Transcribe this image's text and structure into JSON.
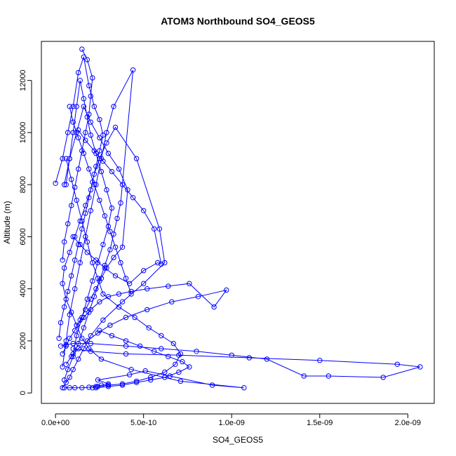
{
  "chart_data": {
    "type": "line",
    "title": "ATOM3 Northbound SO4_GEOS5",
    "xlabel": "SO4_GEOS5",
    "ylabel": "Altitude (m)",
    "xlim": [
      -8e-11,
      2.15e-09
    ],
    "ylim": [
      -400,
      13500
    ],
    "x_ticks": [
      0,
      5e-10,
      1e-09,
      1.5e-09,
      2e-09
    ],
    "x_tick_labels": [
      "0.0e+00",
      "5.0e-10",
      "1.0e-09",
      "1.5e-09",
      "2.0e-09"
    ],
    "y_ticks": [
      0,
      2000,
      4000,
      6000,
      8000,
      10000,
      12000
    ],
    "y_tick_labels": [
      "0",
      "2000",
      "4000",
      "6000",
      "8000",
      "10000",
      "12000"
    ],
    "marker": "open-circle",
    "series_color": "#0000ff",
    "series": [
      {
        "x": [
          2.1e-10,
          2.3e-10,
          2.6e-10,
          3e-10,
          2.4e-10,
          4.2e-10,
          5.1e-10,
          6.5e-10,
          8.9e-10,
          1.07e-09,
          7.1e-10,
          4.3e-10,
          2.6e-10,
          1.9e-10,
          1.5e-10,
          1.2e-10,
          9e-11,
          6e-11,
          4e-11,
          5e-11,
          8e-11,
          1.1e-10,
          1.4e-10,
          1.7e-10,
          2e-10,
          2.2e-10,
          2.5e-10,
          2.9e-10,
          3.4e-10,
          4.6e-10,
          5.9e-10,
          6.2e-10,
          5e-10,
          3.8e-10,
          2.7e-10,
          2e-10,
          1.6e-10,
          1.3e-10,
          1e-10,
          8e-11,
          6e-11,
          4e-11
        ],
        "y": [
          200,
          250,
          300,
          350,
          500,
          700,
          850,
          650,
          300,
          200,
          450,
          900,
          1300,
          1700,
          2100,
          2600,
          3100,
          3600,
          4200,
          4800,
          5400,
          6000,
          6600,
          7200,
          7800,
          8400,
          9000,
          9600,
          10200,
          9000,
          6300,
          5000,
          4200,
          3500,
          2800,
          2200,
          1700,
          1300,
          900,
          600,
          400,
          200
        ]
      },
      {
        "x": [
          5e-11,
          7e-11,
          1e-10,
          1.3e-10,
          1.6e-10,
          1.9e-10,
          2.2e-10,
          2.5e-10,
          2.8e-10,
          3.1e-10,
          3.3e-10,
          3.5e-10,
          3.7e-10,
          4.4e-10,
          3.3e-10,
          2.9e-10,
          2.6e-10,
          2.3e-10,
          2e-10,
          1.7e-10,
          1.4e-10,
          1.1e-10,
          8e-11,
          6e-11,
          4e-11
        ],
        "y": [
          500,
          900,
          1400,
          1900,
          2500,
          3100,
          3700,
          4300,
          4900,
          5500,
          6100,
          6700,
          7300,
          12400,
          11000,
          10000,
          9000,
          8000,
          7000,
          6000,
          5000,
          4000,
          3000,
          2000,
          1000
        ]
      },
      {
        "x": [
          1e-10,
          1.2e-10,
          1.5e-10,
          1.8e-10,
          2.1e-10,
          2.4e-10,
          2.7e-10,
          3e-10,
          3.2e-10,
          2.9e-10,
          2.6e-10,
          2.3e-10,
          2e-10,
          1.8e-10,
          1.6e-10,
          1.4e-10,
          1.2e-10,
          1e-10,
          8e-11,
          6e-11
        ],
        "y": [
          1500,
          2200,
          2900,
          3600,
          4300,
          5000,
          5700,
          6400,
          7100,
          7800,
          8500,
          9200,
          9900,
          10600,
          11300,
          12000,
          11000,
          10000,
          9000,
          8000
        ]
      },
      {
        "x": [
          6e-11,
          9e-11,
          1.2e-10,
          1.5e-10,
          1.8e-10,
          2.1e-10,
          2.4e-10,
          2.7e-10,
          3.6e-10,
          4.5e-10,
          5.3e-10,
          6e-10,
          6.7e-10,
          7.1e-10,
          6.8e-10,
          6.2e-10,
          5.4e-10,
          4.6e-10,
          3.8e-10,
          3e-10,
          2.4e-10,
          1.9e-10,
          1.5e-10,
          1.1e-10,
          8e-11,
          5e-11
        ],
        "y": [
          9000,
          8200,
          7400,
          6600,
          5800,
          5000,
          4400,
          3800,
          3300,
          2900,
          2500,
          2200,
          1900,
          1500,
          1100,
          800,
          600,
          450,
          350,
          300,
          250,
          220,
          200,
          200,
          200,
          200
        ]
      },
      {
        "x": [
          1.2e-10,
          1.6e-10,
          2e-10,
          2.5e-10,
          3e-10,
          3.6e-10,
          4.3e-10,
          5.2e-10,
          6.4e-10,
          7.6e-10,
          9e-10,
          9.7e-10,
          8.1e-10,
          6.6e-10,
          5.2e-10,
          4e-10,
          3.1e-10,
          2.4e-10,
          1.8e-10,
          1.3e-10,
          9e-11,
          6e-11
        ],
        "y": [
          2600,
          2900,
          3200,
          3500,
          3700,
          3800,
          3900,
          4000,
          4100,
          4200,
          3300,
          3950,
          3700,
          3500,
          3200,
          2900,
          2600,
          2300,
          2000,
          1700,
          1400,
          1100
        ]
      },
      {
        "x": [
          1e-10,
          1.4e-10,
          1.8e-10,
          2.3e-10,
          2.8e-10,
          3.4e-10,
          4.2e-10,
          5e-10,
          5.8e-10,
          6e-10,
          5.6e-10,
          5e-10,
          4.4e-10,
          3.8e-10,
          3.2e-10,
          2.7e-10,
          2.2e-10,
          1.7e-10,
          1.3e-10
        ],
        "y": [
          6000,
          5700,
          5400,
          5100,
          4800,
          4500,
          4200,
          4700,
          5000,
          4950,
          6300,
          7000,
          7500,
          8000,
          8500,
          8900,
          9300,
          9700,
          10100
        ]
      },
      {
        "x": [
          3e-11,
          6e-11,
          1e-10,
          2e-10,
          4e-10,
          6e-10,
          8e-10,
          1e-09,
          1.2e-09,
          1.41e-09,
          1.55e-09,
          1.86e-09,
          2.07e-09,
          1.94e-09,
          1.5e-09,
          1.1e-09,
          7e-10,
          4e-10,
          2e-10,
          1e-10
        ],
        "y": [
          1800,
          1850,
          1900,
          1900,
          1800,
          1700,
          1600,
          1450,
          1300,
          650,
          650,
          600,
          1000,
          1100,
          1250,
          1350,
          1450,
          1500,
          1600,
          1700
        ]
      },
      {
        "x": [
          2e-11,
          3e-11,
          5e-11,
          7e-11,
          9e-11,
          1.1e-10,
          1.3e-10,
          1.5e-10,
          1.7e-10,
          1.9e-10,
          2.1e-10,
          2.3e-10,
          2.5e-10,
          2.7e-10,
          2.5e-10,
          2.2e-10,
          1.9e-10,
          1.6e-10,
          1.3e-10,
          1e-10,
          7e-11,
          4e-11,
          0.0
        ],
        "y": [
          2100,
          2700,
          3300,
          3900,
          4500,
          5100,
          5700,
          6300,
          6900,
          7500,
          8100,
          8700,
          9300,
          9900,
          10500,
          11000,
          11800,
          12900,
          12300,
          11000,
          10000,
          9000,
          8050
        ]
      },
      {
        "x": [
          4e-11,
          6e-11,
          8e-11,
          1.1e-10,
          1.4e-10,
          1.7e-10,
          2e-10,
          2.3e-10,
          2.6e-10,
          2.9e-10,
          3.3e-10,
          3.8e-10,
          4.1e-10,
          3.6e-10,
          3e-10,
          2.5e-10,
          2e-10,
          1.6e-10,
          1.2e-10,
          8e-11,
          5e-11
        ],
        "y": [
          1500,
          1800,
          2100,
          2400,
          2800,
          3200,
          3600,
          4000,
          4400,
          4800,
          5200,
          5600,
          7800,
          8600,
          9200,
          9800,
          10400,
          11000,
          10000,
          9000,
          8000
        ]
      },
      {
        "x": [
          1.5e-10,
          1.8e-10,
          2.1e-10,
          2e-10,
          1.9e-10,
          1.7e-10,
          1.5e-10,
          1.3e-10,
          1.1e-10,
          9e-11,
          7e-11,
          5e-11,
          4e-11
        ],
        "y": [
          13200,
          12800,
          12100,
          11400,
          10700,
          10000,
          9300,
          8600,
          7900,
          7200,
          6500,
          5800,
          5100
        ]
      },
      {
        "x": [
          2.5e-10,
          3.2e-10,
          4e-10,
          4.8e-10,
          5.6e-10,
          6.4e-10,
          7.2e-10,
          7.6e-10,
          7e-10,
          6.2e-10,
          5.4e-10,
          4.6e-10,
          3.8e-10,
          3e-10,
          2.3e-10
        ],
        "y": [
          2400,
          2200,
          2000,
          1800,
          1600,
          1400,
          1200,
          1000,
          800,
          600,
          500,
          400,
          300,
          250,
          200
        ]
      },
      {
        "x": [
          8e-11,
          1e-10,
          1.3e-10,
          1.6e-10,
          1.9e-10,
          2.2e-10,
          2.5e-10,
          2.8e-10,
          3.1e-10,
          3.4e-10,
          3.7e-10,
          4e-10,
          4.3e-10
        ],
        "y": [
          11000,
          10400,
          9800,
          9200,
          8600,
          8000,
          7400,
          6800,
          6200,
          5600,
          5000,
          4400,
          3800
        ]
      }
    ]
  }
}
